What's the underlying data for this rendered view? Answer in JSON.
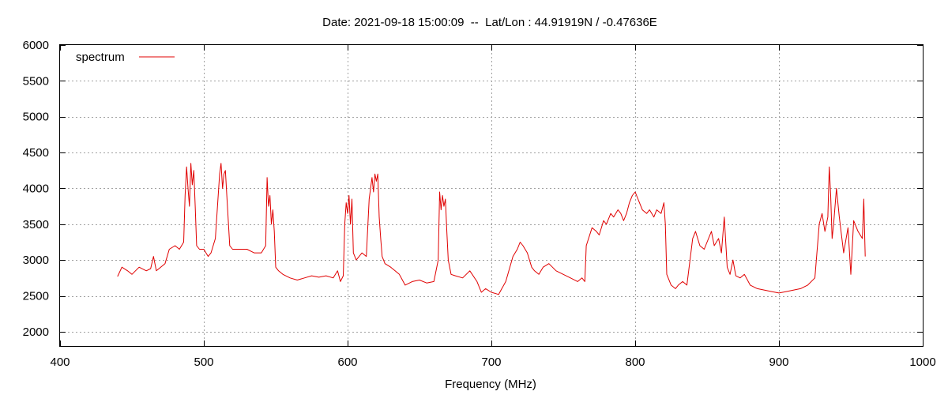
{
  "chart_data": {
    "type": "line",
    "title": "Date: 2021-09-18 15:00:09  --  Lat/Lon : 44.91919N / -0.47636E",
    "xlabel": "Frequency (MHz)",
    "ylabel": "",
    "xlim": [
      400,
      1000
    ],
    "ylim": [
      1800,
      6000
    ],
    "xticks": [
      400,
      500,
      600,
      700,
      800,
      900,
      1000
    ],
    "yticks": [
      2000,
      2500,
      3000,
      3500,
      4000,
      4500,
      5000,
      5500,
      6000
    ],
    "grid": true,
    "legend_position": "top-left",
    "series": [
      {
        "name": "spectrum",
        "color": "#e00000",
        "x": [
          440,
          443,
          447,
          450,
          455,
          460,
          463,
          465,
          467,
          470,
          473,
          476,
          480,
          483,
          486,
          487,
          488,
          489,
          490,
          491,
          492,
          493,
          494,
          495,
          497,
          500,
          503,
          505,
          508,
          510,
          511,
          512,
          513,
          514,
          515,
          516,
          518,
          520,
          525,
          530,
          535,
          540,
          543,
          544,
          545,
          546,
          547,
          548,
          549,
          550,
          552,
          555,
          560,
          565,
          570,
          575,
          580,
          585,
          590,
          593,
          595,
          597,
          598,
          599,
          600,
          601,
          602,
          603,
          604,
          605,
          606,
          608,
          610,
          613,
          615,
          617,
          618,
          619,
          620,
          621,
          622,
          623,
          624,
          626,
          630,
          633,
          636,
          640,
          645,
          650,
          655,
          660,
          663,
          664,
          665,
          666,
          667,
          668,
          669,
          670,
          672,
          675,
          680,
          685,
          690,
          693,
          696,
          700,
          705,
          710,
          715,
          718,
          720,
          722,
          725,
          728,
          730,
          733,
          736,
          740,
          745,
          750,
          755,
          760,
          763,
          765,
          766,
          770,
          773,
          775,
          778,
          780,
          783,
          785,
          788,
          790,
          792,
          794,
          796,
          798,
          800,
          802,
          805,
          808,
          810,
          813,
          815,
          818,
          820,
          821,
          822,
          825,
          828,
          830,
          833,
          836,
          840,
          842,
          845,
          848,
          850,
          853,
          855,
          858,
          860,
          862,
          864,
          866,
          868,
          870,
          873,
          876,
          880,
          885,
          890,
          895,
          900,
          905,
          910,
          915,
          920,
          925,
          928,
          930,
          932,
          934,
          935,
          936,
          937,
          938,
          940,
          942,
          945,
          948,
          950,
          952,
          955,
          958,
          959,
          960
        ],
        "values": [
          2770,
          2900,
          2850,
          2800,
          2900,
          2850,
          2880,
          3050,
          2850,
          2900,
          2950,
          3150,
          3200,
          3150,
          3250,
          3900,
          4300,
          4000,
          3750,
          4350,
          4050,
          4250,
          3750,
          3200,
          3150,
          3150,
          3050,
          3100,
          3300,
          3900,
          4200,
          4350,
          4000,
          4200,
          4250,
          3900,
          3200,
          3150,
          3150,
          3150,
          3100,
          3100,
          3200,
          4150,
          3750,
          3900,
          3500,
          3700,
          3400,
          2900,
          2850,
          2800,
          2750,
          2720,
          2750,
          2780,
          2760,
          2780,
          2750,
          2850,
          2700,
          2780,
          3500,
          3800,
          3650,
          3900,
          3500,
          3850,
          3100,
          3050,
          3000,
          3050,
          3100,
          3050,
          3850,
          4150,
          3950,
          4200,
          4100,
          4200,
          3600,
          3300,
          3050,
          2950,
          2900,
          2850,
          2800,
          2650,
          2700,
          2720,
          2680,
          2700,
          3000,
          3950,
          3700,
          3900,
          3750,
          3850,
          3400,
          3000,
          2800,
          2780,
          2750,
          2850,
          2700,
          2550,
          2600,
          2550,
          2520,
          2700,
          3050,
          3150,
          3250,
          3200,
          3100,
          2900,
          2850,
          2800,
          2900,
          2950,
          2850,
          2800,
          2750,
          2700,
          2750,
          2700,
          3200,
          3450,
          3400,
          3350,
          3550,
          3500,
          3650,
          3600,
          3700,
          3650,
          3550,
          3650,
          3800,
          3900,
          3950,
          3850,
          3700,
          3650,
          3700,
          3600,
          3700,
          3650,
          3800,
          3500,
          2800,
          2650,
          2600,
          2650,
          2700,
          2650,
          3300,
          3400,
          3200,
          3150,
          3250,
          3400,
          3200,
          3300,
          3100,
          3600,
          2900,
          2800,
          3000,
          2780,
          2750,
          2800,
          2650,
          2600,
          2580,
          2560,
          2540,
          2560,
          2580,
          2600,
          2650,
          2750,
          3500,
          3650,
          3400,
          3600,
          4300,
          3900,
          3300,
          3500,
          4000,
          3600,
          3100,
          3450,
          2800,
          3550,
          3400,
          3300,
          3850,
          3050
        ]
      }
    ]
  }
}
